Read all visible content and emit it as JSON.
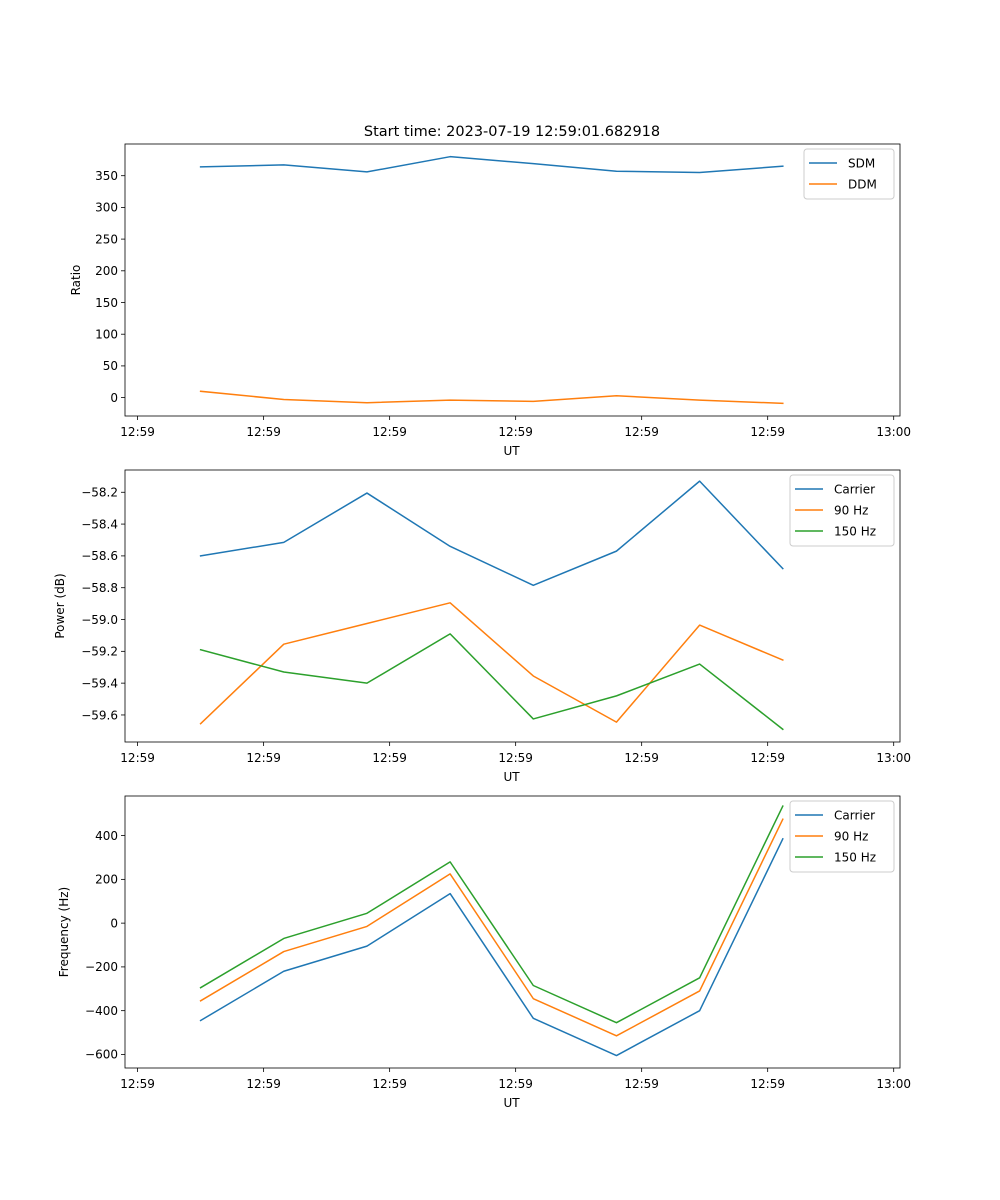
{
  "figure": {
    "title": "Start time: 2023-07-19 12:59:01.682918"
  },
  "colors": {
    "blue": "#1f77b4",
    "orange": "#ff7f0e",
    "green": "#2ca02c",
    "axis": "#000000",
    "legend_border": "#cccccc"
  },
  "chart_data": [
    {
      "type": "line",
      "title": "Start time: 2023-07-19 12:59:01.682918",
      "xlabel": "UT",
      "ylabel": "Ratio",
      "x": [
        0.5,
        1.16,
        1.82,
        2.48,
        3.14,
        3.8,
        4.46,
        5.12
      ],
      "xlim": [
        -0.1,
        6.05
      ],
      "xticks": [
        0,
        1,
        2,
        3,
        4,
        5,
        6
      ],
      "xticklabels": [
        "12:59",
        "12:59",
        "12:59",
        "12:59",
        "12:59",
        "12:59",
        "13:00"
      ],
      "ylim": [
        -29,
        400
      ],
      "yticks": [
        0,
        50,
        100,
        150,
        200,
        250,
        300,
        350
      ],
      "yticklabels": [
        "0",
        "50",
        "100",
        "150",
        "200",
        "250",
        "300",
        "350"
      ],
      "legend_position": "top-right",
      "series": [
        {
          "name": "SDM",
          "color": "#1f77b4",
          "values": [
            364,
            367,
            356,
            380,
            369,
            357,
            355,
            365
          ]
        },
        {
          "name": "DDM",
          "color": "#ff7f0e",
          "values": [
            10,
            -3,
            -8,
            -4,
            -6,
            3,
            -4,
            -9
          ]
        }
      ]
    },
    {
      "type": "line",
      "title": "",
      "xlabel": "UT",
      "ylabel": "Power (dB)",
      "x": [
        0.5,
        1.16,
        1.82,
        2.48,
        3.14,
        3.8,
        4.46,
        5.12
      ],
      "xlim": [
        -0.1,
        6.05
      ],
      "xticks": [
        0,
        1,
        2,
        3,
        4,
        5,
        6
      ],
      "xticklabels": [
        "12:59",
        "12:59",
        "12:59",
        "12:59",
        "12:59",
        "12:59",
        "13:00"
      ],
      "ylim": [
        -59.77,
        -58.06
      ],
      "yticks": [
        -59.6,
        -59.4,
        -59.2,
        -59.0,
        -58.8,
        -58.6,
        -58.4,
        -58.2
      ],
      "yticklabels": [
        "−59.6",
        "−59.4",
        "−59.2",
        "−59.0",
        "−58.8",
        "−58.6",
        "−58.4",
        "−58.2"
      ],
      "legend_position": "top-right",
      "series": [
        {
          "name": "Carrier",
          "color": "#1f77b4",
          "values": [
            -58.6,
            -58.515,
            -58.205,
            -58.54,
            -58.785,
            -58.57,
            -58.13,
            -58.68
          ]
        },
        {
          "name": "90 Hz",
          "color": "#ff7f0e",
          "values": [
            -59.655,
            -59.155,
            -59.025,
            -58.895,
            -59.355,
            -59.645,
            -59.035,
            -59.255
          ]
        },
        {
          "name": "150 Hz",
          "color": "#2ca02c",
          "values": [
            -59.19,
            -59.33,
            -59.4,
            -59.09,
            -59.625,
            -59.48,
            -59.28,
            -59.69
          ]
        }
      ]
    },
    {
      "type": "line",
      "title": "",
      "xlabel": "UT",
      "ylabel": "Frequency (Hz)",
      "x": [
        0.5,
        1.16,
        1.82,
        2.48,
        3.14,
        3.8,
        4.46,
        5.12
      ],
      "xlim": [
        -0.1,
        6.05
      ],
      "xticks": [
        0,
        1,
        2,
        3,
        4,
        5,
        6
      ],
      "xticklabels": [
        "12:59",
        "12:59",
        "12:59",
        "12:59",
        "12:59",
        "12:59",
        "13:00"
      ],
      "ylim": [
        -662,
        581
      ],
      "yticks": [
        -600,
        -400,
        -200,
        0,
        200,
        400
      ],
      "yticklabels": [
        "−600",
        "−400",
        "−200",
        "0",
        "200",
        "400"
      ],
      "legend_position": "top-right",
      "series": [
        {
          "name": "Carrier",
          "color": "#1f77b4",
          "values": [
            -445,
            -220,
            -105,
            135,
            -435,
            -605,
            -400,
            385
          ]
        },
        {
          "name": "90 Hz",
          "color": "#ff7f0e",
          "values": [
            -355,
            -130,
            -15,
            225,
            -345,
            -515,
            -310,
            475
          ]
        },
        {
          "name": "150 Hz",
          "color": "#2ca02c",
          "values": [
            -295,
            -70,
            45,
            280,
            -285,
            -455,
            -250,
            535
          ]
        }
      ]
    }
  ]
}
